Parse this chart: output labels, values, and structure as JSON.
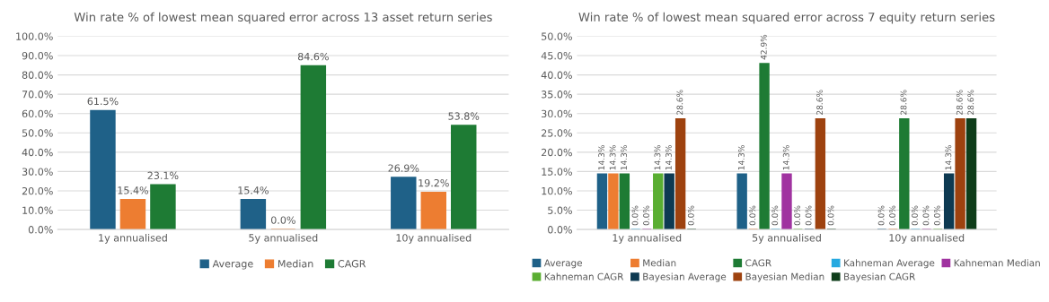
{
  "chart_data": [
    {
      "type": "bar",
      "title": "Win rate % of lowest mean squared error across 13 asset return series",
      "categories": [
        "1y annualised",
        "5y annualised",
        "10y annualised"
      ],
      "series": [
        {
          "name": "Average",
          "color": "#1f6188",
          "values": [
            61.5,
            15.4,
            26.9
          ],
          "value_labels": [
            "61.5%",
            "15.4%",
            "26.9%"
          ]
        },
        {
          "name": "Median",
          "color": "#ed7d31",
          "values": [
            15.4,
            0.0,
            19.2
          ],
          "value_labels": [
            "15.4%",
            "0.0%",
            "19.2%"
          ]
        },
        {
          "name": "CAGR",
          "color": "#1e7b34",
          "values": [
            23.1,
            84.6,
            53.8
          ],
          "value_labels": [
            "23.1%",
            "84.6%",
            "53.8%"
          ]
        }
      ],
      "ylim": [
        0,
        100
      ],
      "yticks": [
        {
          "value": 0,
          "label": "0.0%"
        },
        {
          "value": 10,
          "label": "10.0%"
        },
        {
          "value": 20,
          "label": "20.0%"
        },
        {
          "value": 30,
          "label": "30.0%"
        },
        {
          "value": 40,
          "label": "40.0%"
        },
        {
          "value": 50,
          "label": "50.0%"
        },
        {
          "value": 60,
          "label": "60.0%"
        },
        {
          "value": 70,
          "label": "70.0%"
        },
        {
          "value": 80,
          "label": "80.0%"
        },
        {
          "value": 90,
          "label": "90.0%"
        },
        {
          "value": 100,
          "label": "100.0%"
        }
      ],
      "grid": "y",
      "legend": "bottom"
    },
    {
      "type": "bar",
      "title": "Win rate % of lowest mean squared error across 7 equity return series",
      "categories": [
        "1y annualised",
        "5y annualised",
        "10y annualised"
      ],
      "series": [
        {
          "name": "Average",
          "color": "#1f6188",
          "values": [
            14.3,
            14.3,
            0.0
          ],
          "value_labels": [
            "14.3%",
            "14.3%",
            "0.0%"
          ]
        },
        {
          "name": "Median",
          "color": "#ed7d31",
          "values": [
            14.3,
            0.0,
            0.0
          ],
          "value_labels": [
            "14.3%",
            "0.0%",
            "0.0%"
          ]
        },
        {
          "name": "CAGR",
          "color": "#1e7b34",
          "values": [
            14.3,
            42.9,
            28.6
          ],
          "value_labels": [
            "14.3%",
            "42.9%",
            "28.6%"
          ]
        },
        {
          "name": "Kahneman Average",
          "color": "#26a9e0",
          "values": [
            0.0,
            0.0,
            0.0
          ],
          "value_labels": [
            "0.0%",
            "0.0%",
            "0.0%"
          ]
        },
        {
          "name": "Kahneman Median",
          "color": "#a033a0",
          "values": [
            0.0,
            14.3,
            0.0
          ],
          "value_labels": [
            "0.0%",
            "14.3%",
            "0.0%"
          ]
        },
        {
          "name": "Kahneman CAGR",
          "color": "#5aae32",
          "values": [
            14.3,
            0.0,
            0.0
          ],
          "value_labels": [
            "14.3%",
            "0.0%",
            "0.0%"
          ]
        },
        {
          "name": "Bayesian Average",
          "color": "#0e3a52",
          "values": [
            14.3,
            0.0,
            14.3
          ],
          "value_labels": [
            "14.3%",
            "0.0%",
            "14.3%"
          ]
        },
        {
          "name": "Bayesian Median",
          "color": "#9e420f",
          "values": [
            28.6,
            28.6,
            28.6
          ],
          "value_labels": [
            "28.6%",
            "28.6%",
            "28.6%"
          ]
        },
        {
          "name": "Bayesian CAGR",
          "color": "#0f3d1a",
          "values": [
            0.0,
            0.0,
            28.6
          ],
          "value_labels": [
            "0.0%",
            "0.0%",
            "28.6%"
          ]
        }
      ],
      "ylim": [
        0,
        50
      ],
      "yticks": [
        {
          "value": 0,
          "label": "0.0%"
        },
        {
          "value": 5,
          "label": "5.0%"
        },
        {
          "value": 10,
          "label": "10.0%"
        },
        {
          "value": 15,
          "label": "15.0%"
        },
        {
          "value": 20,
          "label": "20.0%"
        },
        {
          "value": 25,
          "label": "25.0%"
        },
        {
          "value": 30,
          "label": "30.0%"
        },
        {
          "value": 35,
          "label": "35.0%"
        },
        {
          "value": 40,
          "label": "40.0%"
        },
        {
          "value": 45,
          "label": "45.0%"
        },
        {
          "value": 50,
          "label": "50.0%"
        }
      ],
      "grid": "y",
      "legend": "bottom"
    }
  ]
}
